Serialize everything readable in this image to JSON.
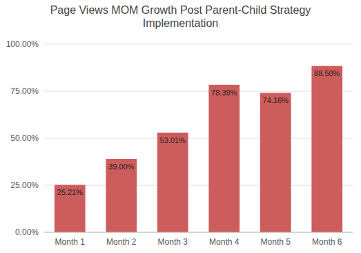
{
  "chart_data": {
    "type": "bar",
    "title": "Page Views MOM Growth Post Parent-Child Strategy\nImplementation",
    "categories": [
      "Month 1",
      "Month 2",
      "Month 3",
      "Month 4",
      "Month 5",
      "Month 6"
    ],
    "values": [
      25.21,
      39.0,
      53.01,
      78.39,
      74.16,
      88.5
    ],
    "value_labels": [
      "25.21%",
      "39.00%",
      "53.01%",
      "78.39%",
      "74.16%",
      "88.50%"
    ],
    "data_labels": true,
    "color": "#CD5C5C",
    "ylim": [
      0,
      100
    ],
    "yticks": [
      {
        "value": 0,
        "label": "0.00%"
      },
      {
        "value": 25,
        "label": "25.00%"
      },
      {
        "value": 50,
        "label": "50.00%"
      },
      {
        "value": 75,
        "label": "75.00%"
      },
      {
        "value": 100,
        "label": "100.00%"
      }
    ],
    "grid": true
  }
}
